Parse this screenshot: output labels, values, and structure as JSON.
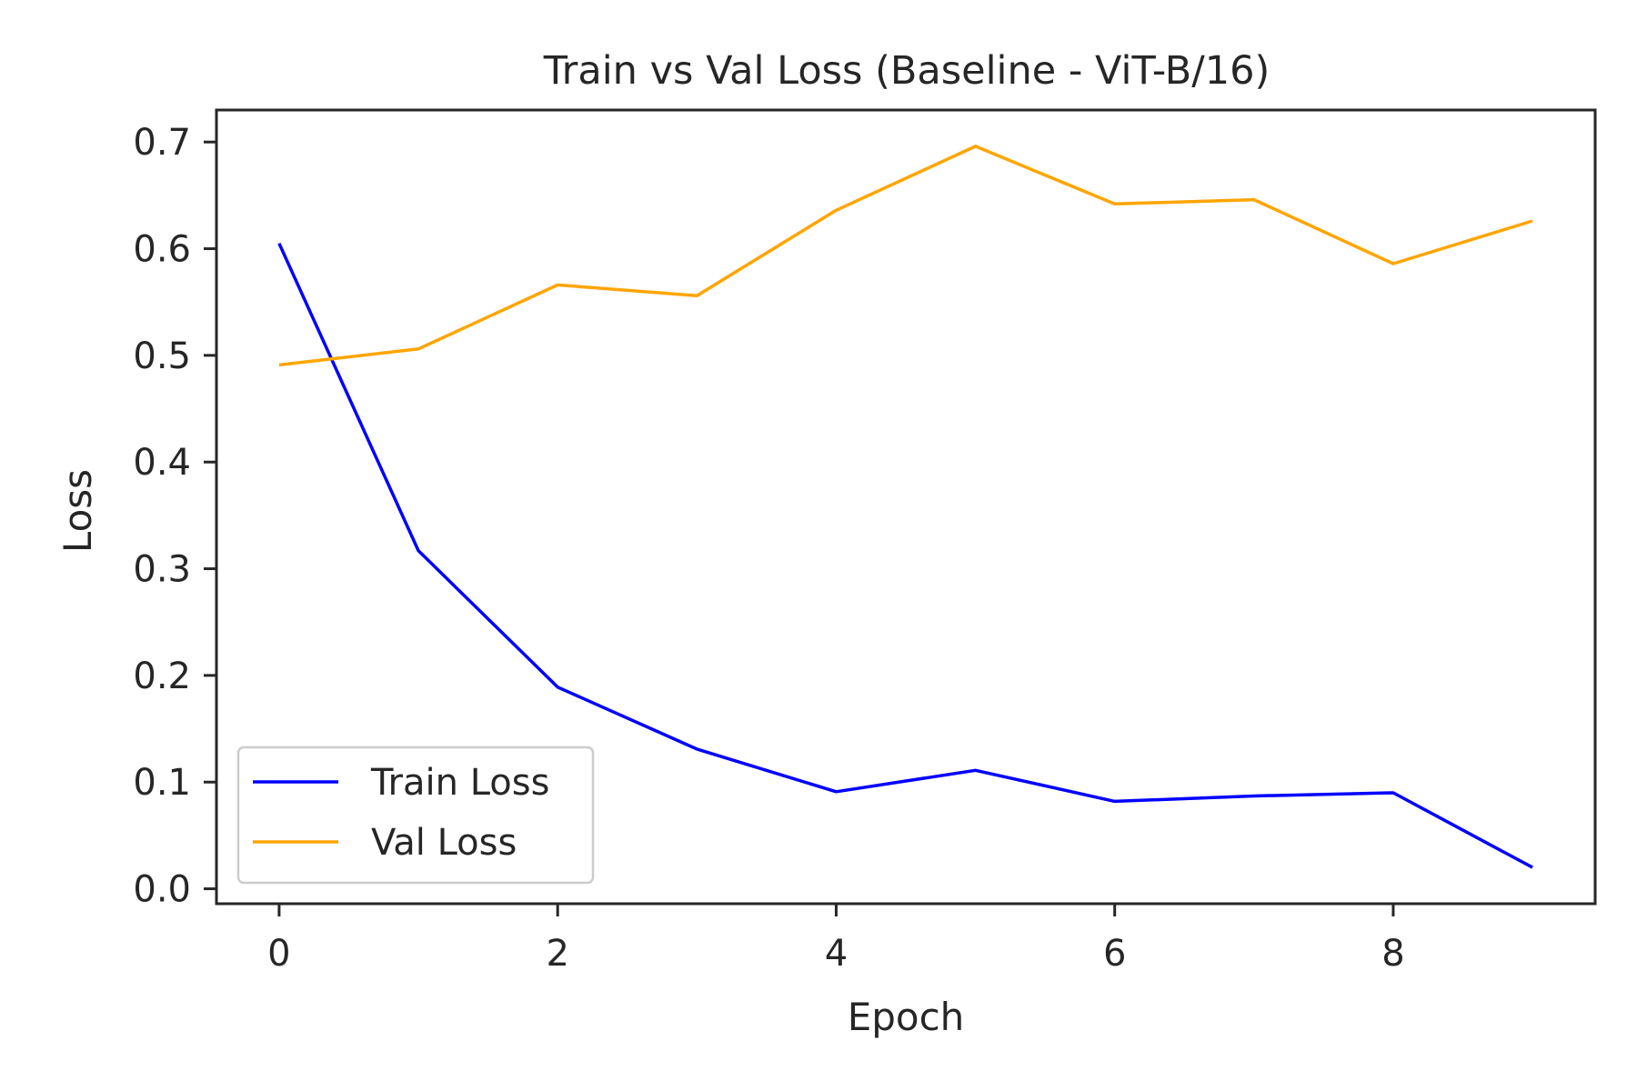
{
  "chart_data": {
    "type": "line",
    "title": "Train vs Val Loss (Baseline - ViT-B/16)",
    "xlabel": "Epoch",
    "ylabel": "Loss",
    "x": [
      0,
      1,
      2,
      3,
      4,
      5,
      6,
      7,
      8,
      9
    ],
    "xlim": [
      -0.45,
      9.45
    ],
    "ylim": [
      -0.014,
      0.73
    ],
    "xticks": [
      0,
      2,
      4,
      6,
      8
    ],
    "xtick_labels": [
      "0",
      "2",
      "4",
      "6",
      "8"
    ],
    "yticks": [
      0.0,
      0.1,
      0.2,
      0.3,
      0.4,
      0.5,
      0.6,
      0.7
    ],
    "ytick_labels": [
      "0.0",
      "0.1",
      "0.2",
      "0.3",
      "0.4",
      "0.5",
      "0.6",
      "0.7"
    ],
    "grid": false,
    "legend_position": "lower-left",
    "series": [
      {
        "name": "Train Loss",
        "color": "#0000ff",
        "values": [
          0.605,
          0.317,
          0.189,
          0.131,
          0.091,
          0.111,
          0.082,
          0.087,
          0.09,
          0.02
        ]
      },
      {
        "name": "Val Loss",
        "color": "#ffa500",
        "values": [
          0.491,
          0.506,
          0.566,
          0.556,
          0.636,
          0.696,
          0.642,
          0.646,
          0.586,
          0.626
        ]
      }
    ]
  }
}
